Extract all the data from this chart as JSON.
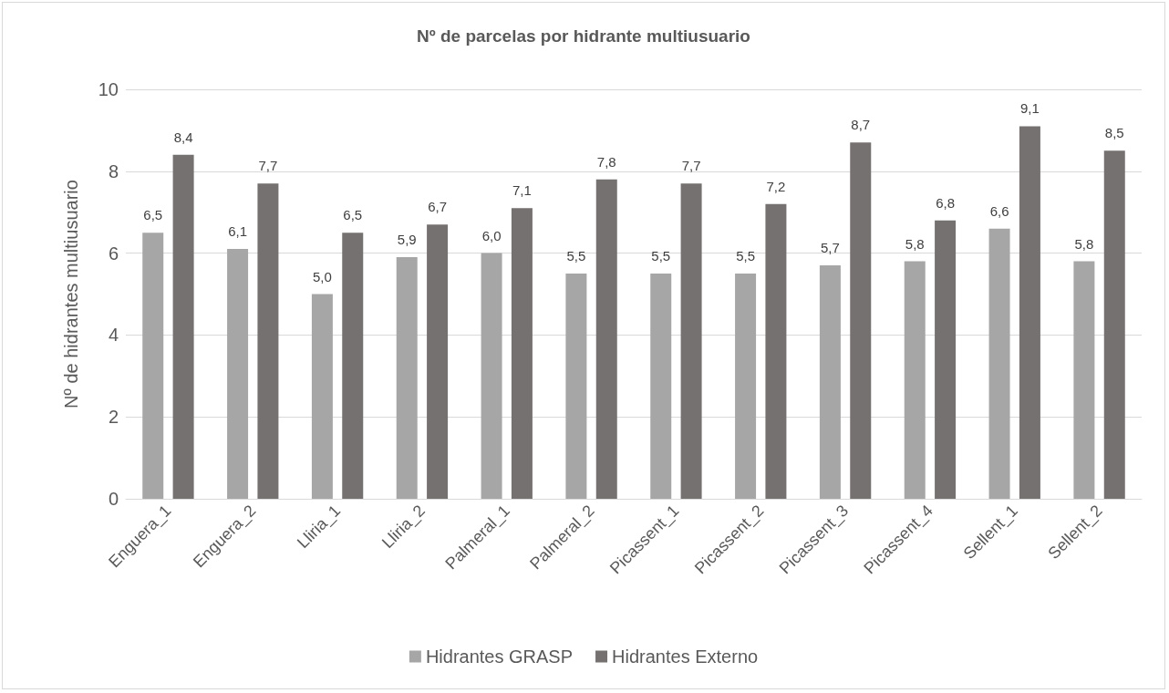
{
  "chart_data": {
    "type": "bar",
    "title": "Nº de parcelas por hidrante multiusuario",
    "ylabel": "Nº de hidrantes multiusuario",
    "categories": [
      "Enguera_1",
      "Enguera_2",
      "Lliria_1",
      "Lliria_2",
      "Palmeral_1",
      "Palmeral_2",
      "Picassent_1",
      "Picassent_2",
      "Picassent_3",
      "Picassent_4",
      "Sellent_1",
      "Sellent_2"
    ],
    "series": [
      {
        "name": "Hidrantes GRASP",
        "color": "#a6a6a6",
        "values": [
          6.5,
          6.1,
          5.0,
          5.9,
          6.0,
          5.5,
          5.5,
          5.5,
          5.7,
          5.8,
          6.6,
          5.8
        ],
        "value_labels": [
          "6,5",
          "6,1",
          "5,0",
          "5,9",
          "6,0",
          "5,5",
          "5,5",
          "5,5",
          "5,7",
          "5,8",
          "6,6",
          "5,8"
        ]
      },
      {
        "name": "Hidrantes Externo",
        "color": "#767171",
        "values": [
          8.4,
          7.7,
          6.5,
          6.7,
          7.1,
          7.8,
          7.7,
          7.2,
          8.7,
          6.8,
          9.1,
          8.5
        ],
        "value_labels": [
          "8,4",
          "7,7",
          "6,5",
          "6,7",
          "7,1",
          "7,8",
          "7,7",
          "7,2",
          "8,7",
          "6,8",
          "9,1",
          "8,5"
        ]
      }
    ],
    "ylim": [
      0,
      10
    ],
    "yticks": [
      0,
      2,
      4,
      6,
      8,
      10
    ],
    "grid": "y",
    "legend": "bottom"
  }
}
